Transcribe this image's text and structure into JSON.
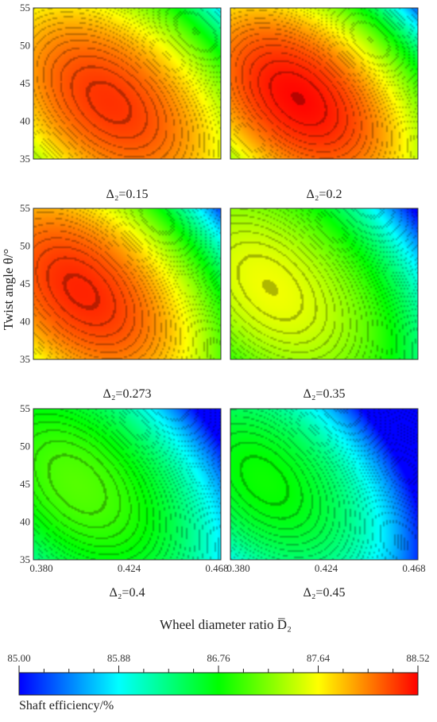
{
  "chart_data": {
    "type": "heatmap",
    "panels": [
      {
        "label": "Δ₂=0.15",
        "peak": 88.35,
        "cx": 0.414,
        "cy": 42.5,
        "grad": 0.55,
        "sx": 0.042,
        "sy": 10.5
      },
      {
        "label": "Δ₂=0.2",
        "peak": 88.5,
        "cx": 0.41,
        "cy": 43.0,
        "grad": 0.6,
        "sx": 0.04,
        "sy": 10.0
      },
      {
        "label": "Δ₂=0.273",
        "peak": 88.4,
        "cx": 0.4,
        "cy": 44.0,
        "grad": 0.55,
        "sx": 0.04,
        "sy": 10.5
      },
      {
        "label": "Δ₂=0.35",
        "peak": 87.6,
        "cx": 0.396,
        "cy": 44.5,
        "grad": 0.45,
        "sx": 0.04,
        "sy": 10.5
      },
      {
        "label": "Δ₂=0.4",
        "peak": 87.05,
        "cx": 0.398,
        "cy": 45.0,
        "grad": 0.6,
        "sx": 0.045,
        "sy": 12.0
      },
      {
        "label": "Δ₂=0.45",
        "peak": 86.8,
        "cx": 0.393,
        "cy": 45.5,
        "grad": 0.7,
        "sx": 0.045,
        "sy": 12.0
      }
    ],
    "xlim": [
      0.376,
      0.47
    ],
    "ylim": [
      35,
      55
    ],
    "x_ticks": [
      "0.380",
      "0.424",
      "0.468"
    ],
    "y_ticks": [
      "35",
      "40",
      "45",
      "50",
      "55"
    ],
    "ylabel": "Twist angle θ/°",
    "xlabel": "Wheel diameter ratio D̅₂",
    "colorbar": {
      "min": 85.0,
      "max": 88.52,
      "ticks": [
        "85.00",
        "85.88",
        "86.76",
        "87.64",
        "88.52"
      ],
      "label": "Shaft efficiency/%",
      "colors": [
        "#0000ff",
        "#00ffff",
        "#00ff00",
        "#ffff00",
        "#ff0000"
      ]
    }
  }
}
